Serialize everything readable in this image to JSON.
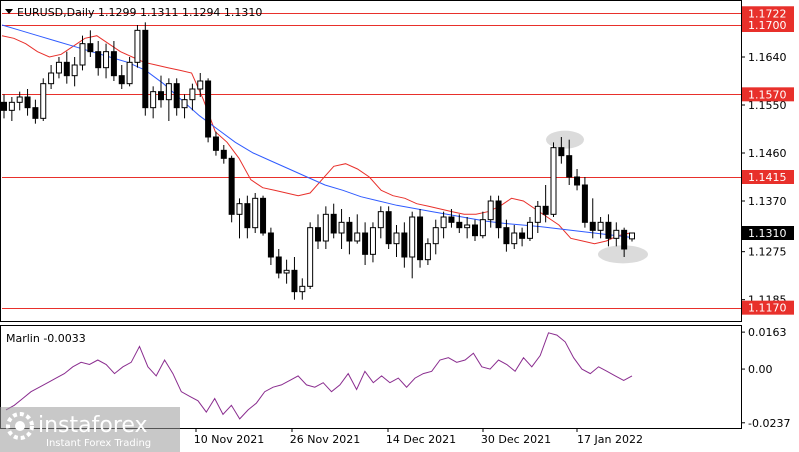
{
  "chart_data": [
    {
      "type": "candlestick",
      "title": "EURUSD,Daily  1.1299 1.1311 1.1294 1.1310",
      "symbol": "EURUSD",
      "timeframe": "Daily",
      "ohlc_header": "1.1299 1.1311 1.1294 1.1310",
      "y_ticks": [
        "1.1722",
        "1.1640",
        "1.1550",
        "1.1460",
        "1.1370",
        "1.1275",
        "1.1185"
      ],
      "ylim": [
        1.1145,
        1.1745
      ],
      "x_tick_labels": [
        "10 Nov 2021",
        "26 Nov 2021",
        "14 Dec 2021",
        "30 Dec 2021",
        "17 Jan 2022"
      ],
      "levels": [
        {
          "value": 1.1722,
          "label": "1.1722",
          "color": "#e8302b"
        },
        {
          "value": 1.17,
          "label": "1.1700",
          "color": "#e8302b"
        },
        {
          "value": 1.157,
          "label": "1.1570",
          "color": "#e8302b"
        },
        {
          "value": 1.1415,
          "label": "1.1415",
          "color": "#e8302b"
        },
        {
          "value": 1.117,
          "label": "1.1170",
          "color": "#e8302b"
        }
      ],
      "current_price": {
        "value": 1.131,
        "label": "1.1310"
      },
      "candles": [
        [
          1.1555,
          1.157,
          1.1525,
          1.154
        ],
        [
          1.154,
          1.1565,
          1.152,
          1.1555
        ],
        [
          1.1555,
          1.1575,
          1.154,
          1.1565
        ],
        [
          1.1565,
          1.158,
          1.153,
          1.1545
        ],
        [
          1.1545,
          1.156,
          1.1515,
          1.1525
        ],
        [
          1.1525,
          1.16,
          1.152,
          1.159
        ],
        [
          1.159,
          1.1625,
          1.158,
          1.161
        ],
        [
          1.161,
          1.164,
          1.16,
          1.163
        ],
        [
          1.163,
          1.165,
          1.159,
          1.1605
        ],
        [
          1.1605,
          1.164,
          1.1585,
          1.1625
        ],
        [
          1.1625,
          1.168,
          1.1615,
          1.1665
        ],
        [
          1.1665,
          1.169,
          1.164,
          1.165
        ],
        [
          1.165,
          1.167,
          1.1605,
          1.162
        ],
        [
          1.162,
          1.1665,
          1.16,
          1.165
        ],
        [
          1.165,
          1.167,
          1.1595,
          1.1605
        ],
        [
          1.1605,
          1.1625,
          1.158,
          1.159
        ],
        [
          1.159,
          1.164,
          1.1585,
          1.163
        ],
        [
          1.163,
          1.17,
          1.162,
          1.169
        ],
        [
          1.169,
          1.1705,
          1.153,
          1.1545
        ],
        [
          1.1545,
          1.1585,
          1.1525,
          1.1575
        ],
        [
          1.1575,
          1.1605,
          1.1545,
          1.156
        ],
        [
          1.156,
          1.16,
          1.152,
          1.159
        ],
        [
          1.159,
          1.16,
          1.153,
          1.1545
        ],
        [
          1.1545,
          1.157,
          1.1525,
          1.156
        ],
        [
          1.156,
          1.159,
          1.154,
          1.158
        ],
        [
          1.158,
          1.161,
          1.1565,
          1.1595
        ],
        [
          1.1595,
          1.16,
          1.148,
          1.149
        ],
        [
          1.149,
          1.15,
          1.1455,
          1.1465
        ],
        [
          1.1465,
          1.1475,
          1.144,
          1.145
        ],
        [
          1.145,
          1.1455,
          1.133,
          1.1345
        ],
        [
          1.1345,
          1.1375,
          1.13,
          1.1365
        ],
        [
          1.1365,
          1.138,
          1.13,
          1.132
        ],
        [
          1.132,
          1.1385,
          1.131,
          1.1375
        ],
        [
          1.1375,
          1.138,
          1.1305,
          1.131
        ],
        [
          1.131,
          1.132,
          1.125,
          1.1265
        ],
        [
          1.1265,
          1.128,
          1.1225,
          1.1235
        ],
        [
          1.1235,
          1.126,
          1.1215,
          1.124
        ],
        [
          1.124,
          1.1265,
          1.1185,
          1.12
        ],
        [
          1.12,
          1.1225,
          1.1185,
          1.121
        ],
        [
          1.121,
          1.133,
          1.1205,
          1.132
        ],
        [
          1.132,
          1.1345,
          1.128,
          1.1295
        ],
        [
          1.1295,
          1.136,
          1.128,
          1.1345
        ],
        [
          1.1345,
          1.1365,
          1.13,
          1.131
        ],
        [
          1.131,
          1.1355,
          1.128,
          1.133
        ],
        [
          1.133,
          1.134,
          1.127,
          1.1295
        ],
        [
          1.1295,
          1.1345,
          1.129,
          1.131
        ],
        [
          1.131,
          1.133,
          1.125,
          1.127
        ],
        [
          1.127,
          1.133,
          1.1255,
          1.132
        ],
        [
          1.132,
          1.136,
          1.13,
          1.135
        ],
        [
          1.135,
          1.136,
          1.128,
          1.129
        ],
        [
          1.129,
          1.1325,
          1.1265,
          1.131
        ],
        [
          1.131,
          1.133,
          1.1245,
          1.1265
        ],
        [
          1.1265,
          1.135,
          1.1225,
          1.134
        ],
        [
          1.134,
          1.1355,
          1.1245,
          1.126
        ],
        [
          1.126,
          1.13,
          1.125,
          1.129
        ],
        [
          1.129,
          1.1335,
          1.127,
          1.132
        ],
        [
          1.132,
          1.135,
          1.13,
          1.134
        ],
        [
          1.134,
          1.1355,
          1.132,
          1.133
        ],
        [
          1.133,
          1.1345,
          1.131,
          1.132
        ],
        [
          1.132,
          1.134,
          1.13,
          1.1325
        ],
        [
          1.1325,
          1.1335,
          1.1295,
          1.1305
        ],
        [
          1.1305,
          1.135,
          1.13,
          1.1335
        ],
        [
          1.1335,
          1.138,
          1.132,
          1.137
        ],
        [
          1.137,
          1.138,
          1.13,
          1.132
        ],
        [
          1.132,
          1.1335,
          1.1275,
          1.129
        ],
        [
          1.129,
          1.1325,
          1.128,
          1.131
        ],
        [
          1.131,
          1.132,
          1.1285,
          1.13
        ],
        [
          1.13,
          1.134,
          1.1295,
          1.133
        ],
        [
          1.133,
          1.137,
          1.131,
          1.136
        ],
        [
          1.136,
          1.14,
          1.133,
          1.1345
        ],
        [
          1.1345,
          1.148,
          1.134,
          1.147
        ],
        [
          1.147,
          1.149,
          1.144,
          1.1455
        ],
        [
          1.1455,
          1.1485,
          1.14,
          1.1415
        ],
        [
          1.1415,
          1.143,
          1.139,
          1.14
        ],
        [
          1.14,
          1.1415,
          1.132,
          1.133
        ],
        [
          1.133,
          1.1375,
          1.13,
          1.1315
        ],
        [
          1.1315,
          1.134,
          1.13,
          1.133
        ],
        [
          1.133,
          1.1345,
          1.1285,
          1.13
        ],
        [
          1.13,
          1.133,
          1.1285,
          1.1315
        ],
        [
          1.1315,
          1.132,
          1.1265,
          1.128
        ],
        [
          1.1299,
          1.1311,
          1.1294,
          1.131
        ]
      ],
      "series": [
        {
          "color": "#e8302b",
          "values": [
            1.168,
            1.1675,
            1.1665,
            1.165,
            1.164,
            1.1645,
            1.166,
            1.1675,
            1.168,
            1.1665,
            1.165,
            1.164,
            1.163,
            1.1625,
            1.162,
            1.1615,
            1.161,
            1.156,
            1.15,
            1.148,
            1.145,
            1.141,
            1.1395,
            1.139,
            1.1385,
            1.138,
            1.1385,
            1.141,
            1.1435,
            1.144,
            1.143,
            1.1415,
            1.139,
            1.138,
            1.1375,
            1.1365,
            1.136,
            1.1355,
            1.135,
            1.1345,
            1.1345,
            1.135,
            1.136,
            1.1375,
            1.137,
            1.1355,
            1.134,
            1.1325,
            1.13,
            1.1295,
            1.129,
            1.1295,
            1.1305,
            1.131
          ]
        },
        {
          "color": "#2f5bff",
          "values": [
            1.17,
            1.169,
            1.168,
            1.167,
            1.166,
            1.165,
            1.164,
            1.163,
            1.1615,
            1.159,
            1.156,
            1.153,
            1.1505,
            1.148,
            1.146,
            1.1445,
            1.143,
            1.1415,
            1.14,
            1.139,
            1.1378,
            1.137,
            1.1362,
            1.1356,
            1.135,
            1.1344,
            1.1338,
            1.1332,
            1.1328,
            1.1325,
            1.1322,
            1.1318,
            1.1314,
            1.131,
            1.1306,
            1.1302
          ]
        }
      ]
    },
    {
      "type": "line",
      "title": "Marlin -0.0033",
      "indicator": "Marlin",
      "value_label": "-0.0033",
      "y_ticks": [
        "0.0163",
        "0.00",
        "-0.0237"
      ],
      "ylim": [
        -0.026,
        0.019
      ],
      "series": [
        {
          "color": "#8a2d8f",
          "values": [
            -0.018,
            -0.016,
            -0.013,
            -0.01,
            -0.008,
            -0.006,
            -0.004,
            -0.002,
            0.001,
            0.003,
            0.002,
            0.004,
            0.002,
            -0.002,
            0.001,
            0.003,
            0.01,
            0.001,
            -0.003,
            0.004,
            -0.002,
            -0.01,
            -0.012,
            -0.014,
            -0.019,
            -0.013,
            -0.02,
            -0.016,
            -0.022,
            -0.018,
            -0.015,
            -0.01,
            -0.008,
            -0.007,
            -0.005,
            -0.003,
            -0.007,
            -0.008,
            -0.006,
            -0.01,
            -0.007,
            -0.002,
            -0.009,
            -0.001,
            -0.006,
            -0.003,
            -0.006,
            -0.004,
            -0.008,
            -0.004,
            -0.002,
            -0.001,
            0.004,
            0.005,
            0.003,
            0.004,
            0.007,
            0.001,
            0.0,
            0.004,
            0.002,
            -0.001,
            0.005,
            0.001,
            0.006,
            0.016,
            0.015,
            0.012,
            0.005,
            0.0,
            -0.002,
            0.001,
            -0.001,
            -0.003,
            -0.005,
            -0.003
          ]
        }
      ]
    }
  ],
  "watermark": {
    "brand": "instaforex",
    "tagline": "Instant Forex Trading"
  }
}
